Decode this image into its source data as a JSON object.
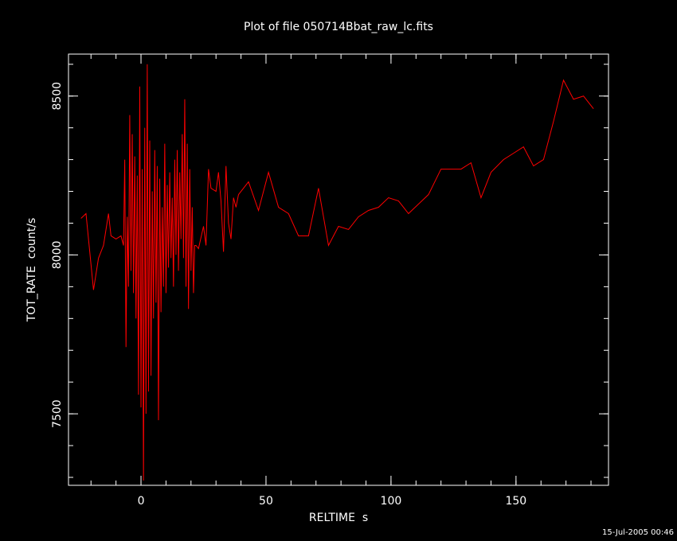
{
  "chart_data": {
    "type": "line",
    "title": "Plot of file 050714Bbat_raw_lc.fits",
    "x_label": "RELTIME  s",
    "y_label": "TOT_RATE  count/s",
    "footer": "15-Jul-2005 00:46",
    "x": [
      -24,
      -22,
      -19,
      -17,
      -15,
      -13,
      -12,
      -10,
      -8,
      -7,
      -6.5,
      -6,
      -5.5,
      -5,
      -4.5,
      -4,
      -3.5,
      -3,
      -2.5,
      -2,
      -1.5,
      -1,
      -0.5,
      0,
      0.5,
      1,
      1.5,
      2,
      2.5,
      3,
      3.5,
      4,
      4.5,
      5,
      5.5,
      6,
      6.5,
      7,
      7.5,
      8,
      8.5,
      9,
      9.5,
      10,
      10.5,
      11,
      11.5,
      12,
      12.5,
      13,
      13.5,
      14,
      14.5,
      15,
      15.5,
      16,
      16.5,
      17,
      17.5,
      18,
      18.5,
      19,
      19.5,
      20,
      20.5,
      21,
      21.5,
      22,
      23,
      25,
      26,
      27,
      28,
      30,
      31,
      32,
      33,
      34,
      35,
      36,
      37,
      38,
      39,
      43,
      47,
      51,
      55,
      59,
      63,
      67,
      71,
      75,
      79,
      83,
      87,
      91,
      95,
      99,
      103,
      107,
      111,
      115,
      120,
      128,
      132,
      136,
      140,
      145,
      149,
      153,
      157,
      161,
      165,
      169,
      173,
      177,
      181
    ],
    "series": [
      {
        "name": "TOT_RATE",
        "color": "#ff0000",
        "values": [
          8115,
          8130,
          7890,
          7990,
          8030,
          8130,
          8060,
          8050,
          8060,
          8030,
          8300,
          7710,
          8120,
          7900,
          8440,
          7950,
          8380,
          7880,
          8310,
          7800,
          8250,
          7560,
          8530,
          7520,
          8270,
          7290,
          8400,
          7500,
          8600,
          7570,
          8360,
          7620,
          8200,
          7800,
          8330,
          7850,
          8280,
          7480,
          8240,
          7820,
          8150,
          7900,
          8350,
          7880,
          8220,
          7960,
          8260,
          7990,
          8180,
          7900,
          8300,
          8000,
          8330,
          7950,
          8260,
          8050,
          8380,
          7990,
          8490,
          7900,
          8350,
          7830,
          8270,
          7950,
          8150,
          7880,
          8030,
          8030,
          8020,
          8090,
          8030,
          8270,
          8210,
          8200,
          8260,
          8170,
          8010,
          8280,
          8100,
          8050,
          8180,
          8150,
          8190,
          8230,
          8140,
          8260,
          8150,
          8130,
          8060,
          8060,
          8210,
          8030,
          8090,
          8080,
          8120,
          8140,
          8150,
          8180,
          8170,
          8130,
          8160,
          8190,
          8270,
          8270,
          8290,
          8180,
          8260,
          8300,
          8320,
          8340,
          8280,
          8300,
          8420,
          8550,
          8490,
          8500,
          8460
        ]
      }
    ],
    "xlim": [
      -29,
      187
    ],
    "ylim": [
      7275,
      8632
    ],
    "xticks": [
      0,
      50,
      100,
      150
    ],
    "yticks": [
      7500,
      8000,
      8500
    ],
    "xminor_step": 10,
    "yminor_step": 100
  }
}
